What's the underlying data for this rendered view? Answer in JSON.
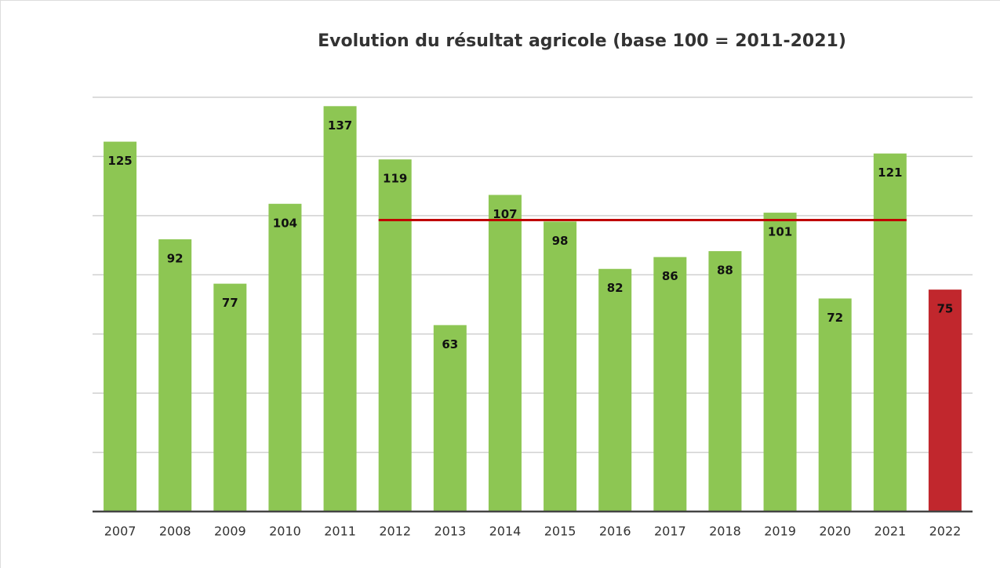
{
  "chart_data": {
    "type": "bar",
    "title": "Evolution du résultat agricole (base 100 = 2011-2021)",
    "categories": [
      "2007",
      "2008",
      "2009",
      "2010",
      "2011",
      "2012",
      "2013",
      "2014",
      "2015",
      "2016",
      "2017",
      "2018",
      "2019",
      "2020",
      "2021",
      "2022"
    ],
    "values": [
      125,
      92,
      77,
      104,
      137,
      119,
      63,
      107,
      98,
      82,
      86,
      88,
      101,
      72,
      121,
      75
    ],
    "colors": [
      "#8dc653",
      "#8dc653",
      "#8dc653",
      "#8dc653",
      "#8dc653",
      "#8dc653",
      "#8dc653",
      "#8dc653",
      "#8dc653",
      "#8dc653",
      "#8dc653",
      "#8dc653",
      "#8dc653",
      "#8dc653",
      "#8dc653",
      "#c1272d"
    ],
    "ylim": [
      0,
      140
    ],
    "yticks": [
      20,
      40,
      60,
      80,
      100,
      120,
      140
    ],
    "grid": true,
    "reference_line": {
      "value": 98.5,
      "start_category": "2012",
      "end_category": "2021",
      "color": "#c00000"
    }
  }
}
